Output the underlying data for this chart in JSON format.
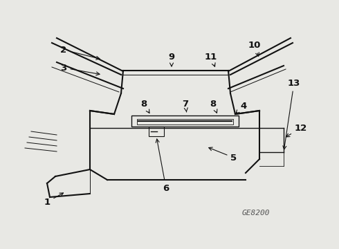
{
  "bg_color": "#e8e8e4",
  "line_color": "#111111",
  "label_color": "#111111",
  "figure_id": "GE8200",
  "figsize": [
    4.9,
    3.6
  ],
  "dpi": 100
}
